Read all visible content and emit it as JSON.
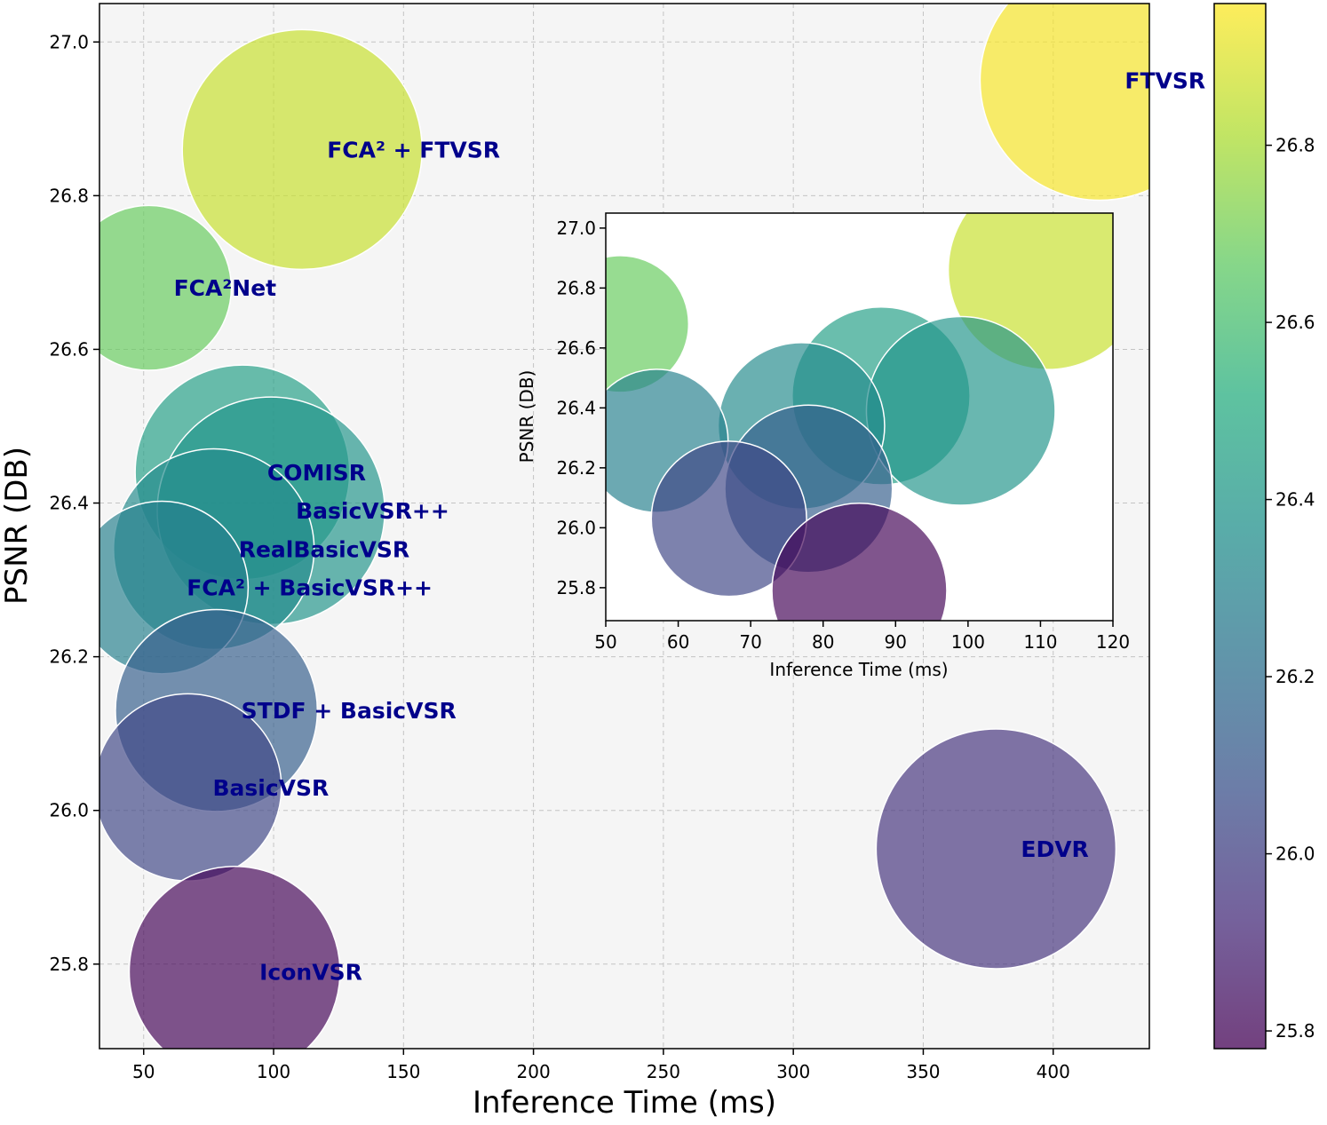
{
  "chart_data": [
    {
      "type": "scatter",
      "xlabel": "Inference Time (ms)",
      "ylabel": "PSNR (DB)",
      "xlim": [
        33,
        437
      ],
      "ylim": [
        25.69,
        27.05
      ],
      "xticks": [
        50,
        100,
        150,
        200,
        250,
        300,
        350,
        400
      ],
      "yticks": [
        25.8,
        26.0,
        26.2,
        26.4,
        26.6,
        26.8,
        27.0
      ],
      "grid": true,
      "color_scale": "viridis",
      "points": [
        {
          "label": "FTVSR",
          "x": 418,
          "y": 26.95
        },
        {
          "label": "FCA² + FTVSR",
          "x": 111,
          "y": 26.86
        },
        {
          "label": "FCA²Net",
          "x": 52,
          "y": 26.68
        },
        {
          "label": "COMISR",
          "x": 88,
          "y": 26.44
        },
        {
          "label": "BasicVSR++",
          "x": 99,
          "y": 26.39
        },
        {
          "label": "RealBasicVSR",
          "x": 77,
          "y": 26.34
        },
        {
          "label": "FCA² + BasicVSR++",
          "x": 57,
          "y": 26.29
        },
        {
          "label": "STDF + BasicVSR",
          "x": 78,
          "y": 26.13
        },
        {
          "label": "BasicVSR",
          "x": 67,
          "y": 26.03
        },
        {
          "label": "IconVSR",
          "x": 85,
          "y": 25.79
        },
        {
          "label": "EDVR",
          "x": 378,
          "y": 25.95
        }
      ]
    },
    {
      "type": "scatter",
      "xlabel": "Inference Time (ms)",
      "ylabel": "PSNR (DB)",
      "xlim": [
        50,
        120
      ],
      "ylim": [
        25.69,
        27.05
      ],
      "xticks": [
        50,
        60,
        70,
        80,
        90,
        100,
        110,
        120
      ],
      "yticks": [
        25.8,
        26.0,
        26.2,
        26.4,
        26.6,
        26.8,
        27.0
      ],
      "grid": false,
      "color_scale": "viridis",
      "points": [
        {
          "x": 111,
          "y": 26.86
        },
        {
          "x": 52,
          "y": 26.68
        },
        {
          "x": 88,
          "y": 26.44
        },
        {
          "x": 99,
          "y": 26.39
        },
        {
          "x": 77,
          "y": 26.34
        },
        {
          "x": 57,
          "y": 26.29
        },
        {
          "x": 78,
          "y": 26.13
        },
        {
          "x": 67,
          "y": 26.03
        },
        {
          "x": 85,
          "y": 25.79
        }
      ]
    }
  ],
  "colorbar": {
    "range": [
      25.78,
      26.96
    ],
    "ticks": [
      25.8,
      26.0,
      26.2,
      26.4,
      26.6,
      26.8
    ]
  }
}
